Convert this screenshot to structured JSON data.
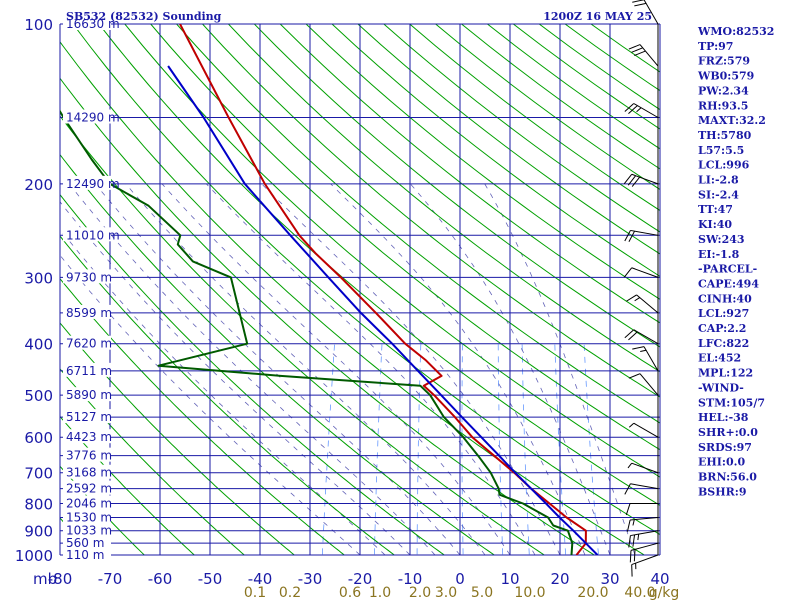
{
  "header": {
    "station": "SB532 (82532) Sounding",
    "time": "1200Z 16 MAY 25"
  },
  "chart_data": {
    "type": "line",
    "title": "SB532 (82532) Sounding",
    "subtitle": "1200Z 16 MAY 25",
    "pressure_axis": {
      "unit_label": "mb",
      "scale": "log",
      "ylim": [
        1000,
        100
      ],
      "ticks": [
        1000,
        900,
        800,
        700,
        600,
        500,
        400,
        300,
        200,
        100
      ],
      "tick_labels": [
        "1000",
        "900",
        "800",
        "700",
        "600",
        "500",
        "400",
        "300",
        "200",
        "100"
      ]
    },
    "height_labels": [
      {
        "p": 100,
        "label": "16630 m"
      },
      {
        "p": 150,
        "label": "14290 m"
      },
      {
        "p": 200,
        "label": "12490 m"
      },
      {
        "p": 250,
        "label": "11010 m"
      },
      {
        "p": 300,
        "label": "9730 m"
      },
      {
        "p": 350,
        "label": "8599 m"
      },
      {
        "p": 400,
        "label": "7620 m"
      },
      {
        "p": 450,
        "label": "6711 m"
      },
      {
        "p": 500,
        "label": "5890 m"
      },
      {
        "p": 550,
        "label": "5127 m"
      },
      {
        "p": 600,
        "label": "4423 m"
      },
      {
        "p": 650,
        "label": "3776 m"
      },
      {
        "p": 700,
        "label": "3168 m"
      },
      {
        "p": 750,
        "label": "2592 m"
      },
      {
        "p": 800,
        "label": "2046 m"
      },
      {
        "p": 850,
        "label": "1530 m"
      },
      {
        "p": 900,
        "label": "1033 m"
      },
      {
        "p": 950,
        "label": "560 m"
      },
      {
        "p": 1000,
        "label": "110 m"
      }
    ],
    "temperature_axis": {
      "xlim": [
        -80,
        40
      ],
      "ticks": [
        -80,
        -70,
        -60,
        -50,
        -40,
        -30,
        -20,
        -10,
        0,
        10,
        20,
        30,
        40
      ],
      "tick_labels": [
        "-80",
        "-70",
        "-60",
        "-50",
        "-40",
        "-30",
        "-20",
        "-10",
        "0",
        "10",
        "20",
        "30",
        "40"
      ]
    },
    "mixing_ratio_labels": [
      "0.1",
      "0.2",
      "0.6",
      "1.0",
      "2.0",
      "3.0",
      "5.0",
      "10.0",
      "20.0",
      "40.0",
      "g/kg"
    ],
    "grid": true,
    "series": [
      {
        "key": "temperature",
        "color": "#c00000",
        "points": [
          {
            "p": 1000,
            "x": 23.3
          },
          {
            "p": 950,
            "x": 24.5
          },
          {
            "p": 900,
            "x": 23.8
          },
          {
            "p": 850,
            "x": 19.2
          },
          {
            "p": 800,
            "x": 15.0
          },
          {
            "p": 750,
            "x": 10.5
          },
          {
            "p": 700,
            "x": 6.2
          },
          {
            "p": 650,
            "x": 1.2
          },
          {
            "p": 600,
            "x": -4.2
          },
          {
            "p": 550,
            "x": -8.8
          },
          {
            "p": 500,
            "x": -14.2
          },
          {
            "p": 480,
            "x": -16.8
          },
          {
            "p": 460,
            "x": -13.8
          },
          {
            "p": 430,
            "x": -17.8
          },
          {
            "p": 400,
            "x": -22.9
          },
          {
            "p": 350,
            "x": -30.5
          },
          {
            "p": 300,
            "x": -39.5
          },
          {
            "p": 270,
            "x": -46.0
          },
          {
            "p": 250,
            "x": -50.2
          },
          {
            "p": 200,
            "x": -60.0
          },
          {
            "p": 150,
            "x": -71.0
          },
          {
            "p": 100,
            "x": -86.0
          }
        ]
      },
      {
        "key": "dewpoint",
        "color": "#005a00",
        "points": [
          {
            "p": 1000,
            "x": 22.3
          },
          {
            "p": 950,
            "x": 21.8
          },
          {
            "p": 900,
            "x": 20.2
          },
          {
            "p": 880,
            "x": 17.0
          },
          {
            "p": 850,
            "x": 15.5
          },
          {
            "p": 800,
            "x": 9.7
          },
          {
            "p": 770,
            "x": 4.5
          },
          {
            "p": 750,
            "x": 4.0
          },
          {
            "p": 700,
            "x": 1.5
          },
          {
            "p": 650,
            "x": -2.0
          },
          {
            "p": 600,
            "x": -6.0
          },
          {
            "p": 550,
            "x": -11.0
          },
          {
            "p": 500,
            "x": -15.0
          },
          {
            "p": 480,
            "x": -17.5
          },
          {
            "p": 460,
            "x": -46.0
          },
          {
            "p": 440,
            "x": -71.0
          },
          {
            "p": 400,
            "x": -54.5
          },
          {
            "p": 300,
            "x": -61.5
          },
          {
            "p": 280,
            "x": -70.0
          },
          {
            "p": 260,
            "x": -74.0
          },
          {
            "p": 250,
            "x": -74.0
          },
          {
            "p": 220,
            "x": -82.0
          },
          {
            "p": 200,
            "x": -91.0
          },
          {
            "p": 180,
            "x": -96.0
          },
          {
            "p": 150,
            "x": -104.0
          },
          {
            "p": 120,
            "x": -113.0
          }
        ]
      },
      {
        "key": "parcel",
        "color": "#0000c8",
        "points": [
          {
            "p": 1000,
            "x": 27.5
          },
          {
            "p": 950,
            "x": 24.5
          },
          {
            "p": 900,
            "x": 21.3
          },
          {
            "p": 850,
            "x": 17.8
          },
          {
            "p": 800,
            "x": 14.3
          },
          {
            "p": 750,
            "x": 10.5
          },
          {
            "p": 700,
            "x": 6.4
          },
          {
            "p": 650,
            "x": 2.2
          },
          {
            "p": 600,
            "x": -2.4
          },
          {
            "p": 550,
            "x": -7.4
          },
          {
            "p": 500,
            "x": -12.8
          },
          {
            "p": 450,
            "x": -18.8
          },
          {
            "p": 400,
            "x": -25.5
          },
          {
            "p": 350,
            "x": -33.5
          },
          {
            "p": 300,
            "x": -42.0
          },
          {
            "p": 250,
            "x": -52.0
          },
          {
            "p": 200,
            "x": -64.0
          },
          {
            "p": 150,
            "x": -76.0
          },
          {
            "p": 120,
            "x": -86.0
          }
        ]
      }
    ]
  },
  "wind_barbs": [
    {
      "p": 1000,
      "dir": 250,
      "spd": 15
    },
    {
      "p": 950,
      "dir": 255,
      "spd": 20
    },
    {
      "p": 900,
      "dir": 260,
      "spd": 25
    },
    {
      "p": 850,
      "dir": 265,
      "spd": 15
    },
    {
      "p": 800,
      "dir": 270,
      "spd": 10
    },
    {
      "p": 750,
      "dir": 280,
      "spd": 10
    },
    {
      "p": 700,
      "dir": 290,
      "spd": 5
    },
    {
      "p": 600,
      "dir": 300,
      "spd": 5
    },
    {
      "p": 500,
      "dir": 320,
      "spd": 10
    },
    {
      "p": 450,
      "dir": 330,
      "spd": 15
    },
    {
      "p": 400,
      "dir": 300,
      "spd": 20
    },
    {
      "p": 350,
      "dir": 310,
      "spd": 15
    },
    {
      "p": 300,
      "dir": 290,
      "spd": 10
    },
    {
      "p": 250,
      "dir": 280,
      "spd": 20
    },
    {
      "p": 200,
      "dir": 290,
      "spd": 30
    },
    {
      "p": 150,
      "dir": 300,
      "spd": 25
    },
    {
      "p": 120,
      "dir": 320,
      "spd": 30
    },
    {
      "p": 100,
      "dir": 330,
      "spd": 20
    }
  ],
  "indices": [
    "WMO:82532",
    "TP:97",
    "FRZ:579",
    "WB0:579",
    "PW:2.34",
    "RH:93.5",
    "MAXT:32.2",
    "TH:5780",
    "L57:5.5",
    "LCL:996",
    "LI:-2.8",
    "SI:-2.4",
    "TT:47",
    "KI:40",
    "SW:243",
    "EI:-1.8",
    "-PARCEL-",
    "CAPE:494",
    "CINH:40",
    "LCL:927",
    "CAP:2.2",
    "LFC:822",
    "EL:452",
    "MPL:122",
    "-WIND-",
    "STM:105/7",
    "HEL:-38",
    "SHR+:0.0",
    "SRDS:97",
    "EHI:0.0",
    "BRN:56.0",
    "BSHR:9"
  ],
  "colors": {
    "grid": "#1a1aa6",
    "dry_adiabat": "#00a000",
    "moist_adiabat": "#3030a0",
    "mixing_ratio": "#4080ff",
    "mixing_label": "#8a7420",
    "temperature": "#c00000",
    "dewpoint": "#005a00",
    "parcel": "#0000c8"
  }
}
